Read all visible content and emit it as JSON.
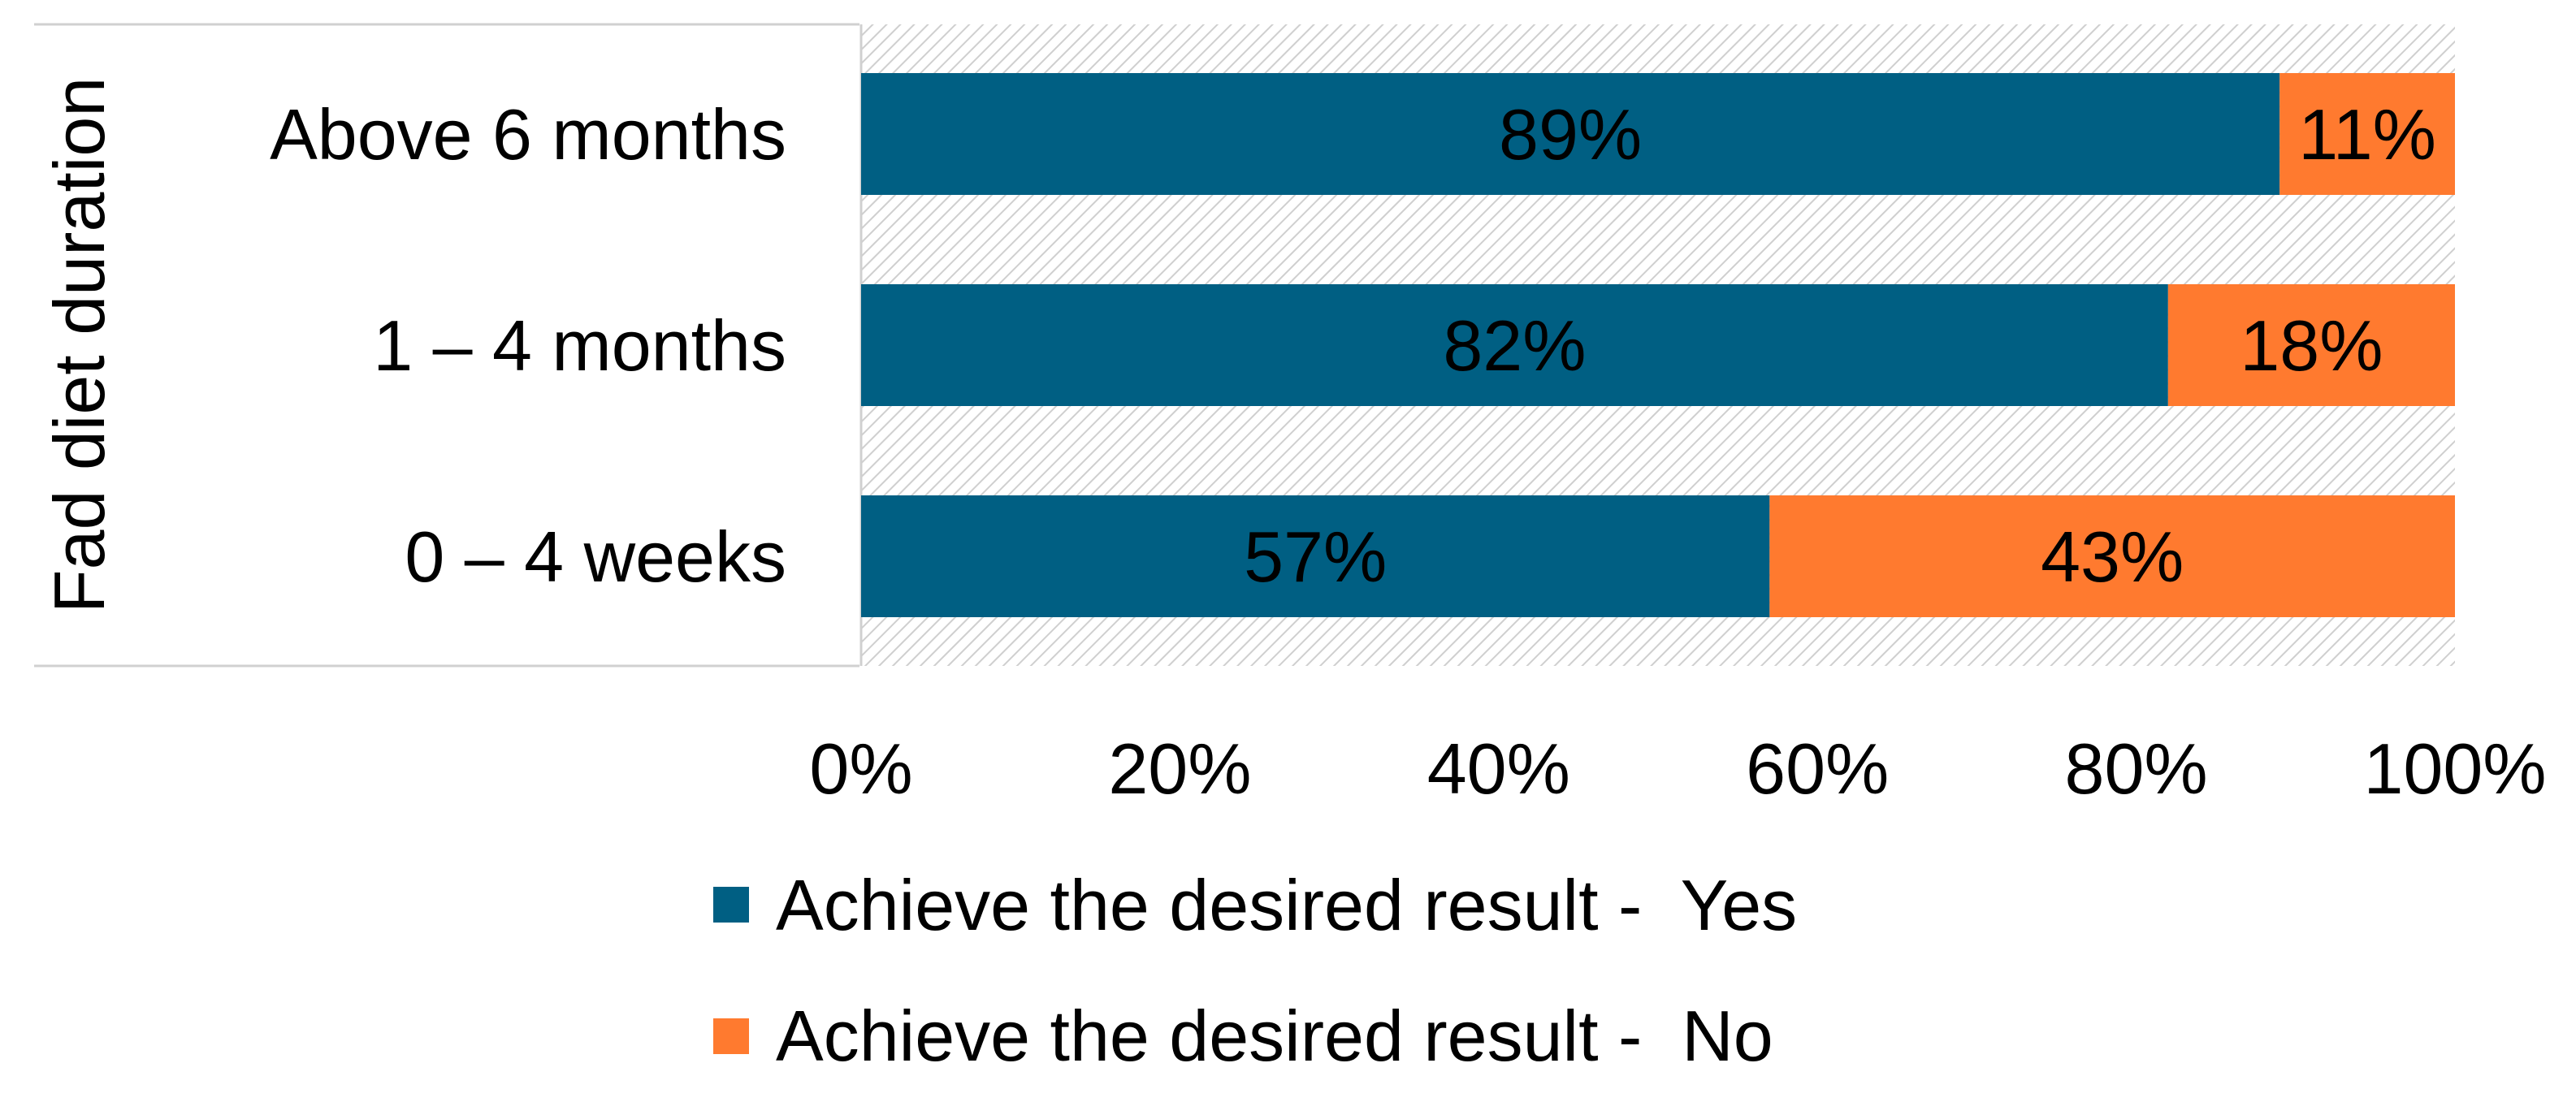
{
  "chart_data": {
    "type": "bar",
    "orientation": "horizontal",
    "stacked": true,
    "title": "",
    "ylabel": "Fad diet duration",
    "xlabel": "",
    "categories": [
      "Above 6 months",
      "1 – 4 months",
      "0 – 4 weeks"
    ],
    "series": [
      {
        "name": "Achieve the desired result -  Yes",
        "color": "#005F83",
        "values": [
          89,
          82,
          57
        ],
        "labels": [
          "89%",
          "82%",
          "57%"
        ]
      },
      {
        "name": "Achieve the desired result -  No",
        "color": "#FF7A2F",
        "values": [
          11,
          18,
          43
        ],
        "labels": [
          "11%",
          "18%",
          "43%"
        ]
      }
    ],
    "xlim": [
      0,
      100
    ],
    "xticks": [
      0,
      20,
      40,
      60,
      80,
      100
    ],
    "xtick_labels": [
      "0%",
      "20%",
      "40%",
      "60%",
      "80%",
      "100%"
    ],
    "grid": false,
    "plot_background": "hatched-gray",
    "legend_position": "bottom"
  }
}
